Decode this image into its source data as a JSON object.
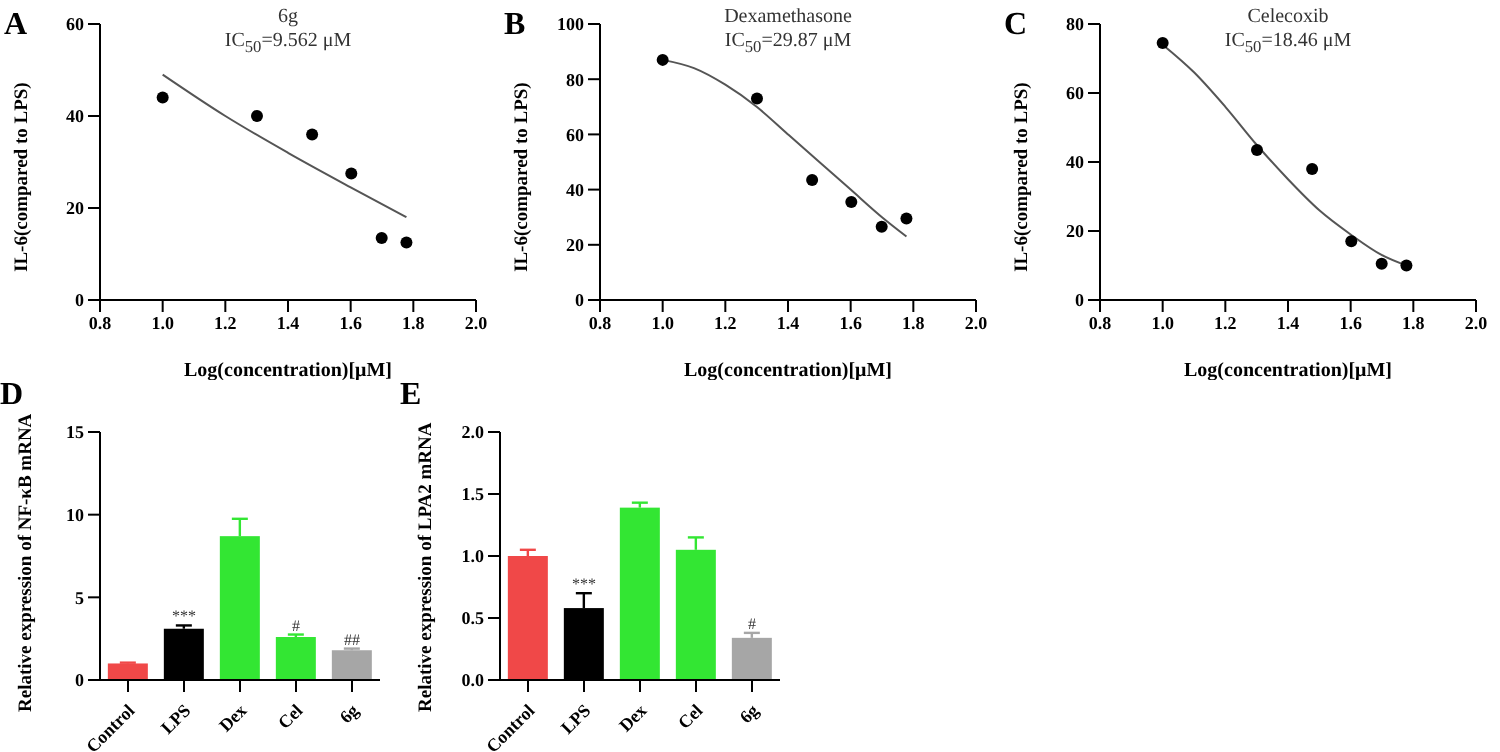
{
  "chart_data": [
    {
      "type": "scatter",
      "title": "6g",
      "subtitle": "IC$_{50}$=9.562 μM",
      "xlabel": "Log(concentration)[μM]",
      "ylabel": "IL-6(compared to LPS)",
      "annotations": [
        "A"
      ],
      "grid": false,
      "legend": false,
      "xlim": [
        0.8,
        2.0
      ],
      "xticks": [
        {
          "value": 0.8,
          "label": "0.8"
        },
        {
          "value": 1,
          "label": "1.0"
        },
        {
          "value": 1.2,
          "label": "1.2"
        },
        {
          "value": 1.4,
          "label": "1.4"
        },
        {
          "value": 1.6,
          "label": "1.6"
        },
        {
          "value": 1.8,
          "label": "1.8"
        },
        {
          "value": 2,
          "label": "2.0"
        }
      ],
      "ylim": [
        0,
        60
      ],
      "yticks": [
        0,
        20,
        40,
        60
      ],
      "series": [
        {
          "type": "scatter",
          "marker": "circle",
          "color": "#000000",
          "x": [
            1.0,
            1.301,
            1.477,
            1.602,
            1.699,
            1.778
          ],
          "values": [
            44,
            40,
            36,
            27.5,
            13.5,
            12.5
          ]
        },
        {
          "type": "line",
          "marker": "none",
          "color": "#555555",
          "x": [
            1.0,
            1.2,
            1.4,
            1.6,
            1.778
          ],
          "values": [
            49,
            40,
            32,
            24.5,
            18
          ]
        }
      ]
    },
    {
      "type": "scatter",
      "title": "Dexamethasone",
      "subtitle": "IC$_{50}$=29.87 μM",
      "xlabel": "Log(concentration)[μM]",
      "ylabel": "IL-6(compared to LPS)",
      "annotations": [
        "B"
      ],
      "grid": false,
      "legend": false,
      "xlim": [
        0.8,
        2.0
      ],
      "xticks": [
        {
          "value": 0.8,
          "label": "0.8"
        },
        {
          "value": 1,
          "label": "1.0"
        },
        {
          "value": 1.2,
          "label": "1.2"
        },
        {
          "value": 1.4,
          "label": "1.4"
        },
        {
          "value": 1.6,
          "label": "1.6"
        },
        {
          "value": 1.8,
          "label": "1.8"
        },
        {
          "value": 2,
          "label": "2.0"
        }
      ],
      "ylim": [
        0,
        100
      ],
      "yticks": [
        0,
        20,
        40,
        60,
        80,
        100
      ],
      "series": [
        {
          "type": "scatter",
          "marker": "circle",
          "color": "#000000",
          "x": [
            1.0,
            1.301,
            1.477,
            1.602,
            1.699,
            1.778
          ],
          "values": [
            87,
            73,
            43.5,
            35.5,
            26.5,
            29.5
          ]
        },
        {
          "type": "line",
          "marker": "none",
          "color": "#555555",
          "x": [
            1.0,
            1.1,
            1.2,
            1.3,
            1.4,
            1.5,
            1.6,
            1.7,
            1.778
          ],
          "values": [
            87,
            84,
            78,
            70,
            60,
            50,
            40,
            30,
            23
          ]
        }
      ]
    },
    {
      "type": "scatter",
      "title": "Celecoxib",
      "subtitle": "IC$_{50}$=18.46 μM",
      "xlabel": "Log(concentration)[μM]",
      "ylabel": "IL-6(compared to LPS)",
      "annotations": [
        "C"
      ],
      "grid": false,
      "legend": false,
      "xlim": [
        0.8,
        2.0
      ],
      "xticks": [
        {
          "value": 0.8,
          "label": "0.8"
        },
        {
          "value": 1,
          "label": "1.0"
        },
        {
          "value": 1.2,
          "label": "1.2"
        },
        {
          "value": 1.4,
          "label": "1.4"
        },
        {
          "value": 1.6,
          "label": "1.6"
        },
        {
          "value": 1.8,
          "label": "1.8"
        },
        {
          "value": 2,
          "label": "2.0"
        }
      ],
      "ylim": [
        0,
        80
      ],
      "yticks": [
        0,
        20,
        40,
        60,
        80
      ],
      "series": [
        {
          "type": "scatter",
          "marker": "circle",
          "color": "#000000",
          "x": [
            1.0,
            1.301,
            1.477,
            1.602,
            1.699,
            1.778
          ],
          "values": [
            74.5,
            43.5,
            38,
            17,
            10.5,
            10
          ]
        },
        {
          "type": "line",
          "marker": "none",
          "color": "#555555",
          "x": [
            1.0,
            1.1,
            1.2,
            1.3,
            1.4,
            1.5,
            1.6,
            1.7,
            1.778
          ],
          "values": [
            74,
            66,
            56,
            45,
            35,
            26,
            19,
            13,
            10
          ]
        }
      ]
    },
    {
      "type": "bar",
      "ylabel": "Relative expression of NF-κB mRNA",
      "grid": false,
      "legend": false,
      "categories": [
        "Control",
        "LPS",
        "Dex",
        "Cel",
        "6g"
      ],
      "values": [
        1.0,
        3.1,
        8.7,
        2.6,
        1.8
      ],
      "errors": [
        0.05,
        0.2,
        1.05,
        0.15,
        0.1
      ],
      "colors": [
        "#f04848",
        "#000000",
        "#33e633",
        "#33e633",
        "#a6a6a6"
      ],
      "ylim": [
        0,
        15
      ],
      "yticks": [
        0,
        5,
        10,
        15
      ],
      "annotations": [
        "D",
        {
          "text": "***",
          "x": "LPS",
          "y": 3.3
        },
        {
          "text": "#",
          "x": "Cel",
          "y": 2.75
        },
        {
          "text": "##",
          "x": "6g",
          "y": 1.9
        }
      ]
    },
    {
      "type": "bar",
      "ylabel": "Relative expression of LPA2 mRNA",
      "grid": false,
      "legend": false,
      "categories": [
        "Control",
        "LPS",
        "Dex",
        "Cel",
        "6g"
      ],
      "values": [
        1.0,
        0.58,
        1.39,
        1.05,
        0.34
      ],
      "errors": [
        0.05,
        0.12,
        0.04,
        0.1,
        0.04
      ],
      "colors": [
        "#f04848",
        "#000000",
        "#33e633",
        "#33e633",
        "#a6a6a6"
      ],
      "ylim": [
        0,
        2
      ],
      "yticks": [
        {
          "value": 0,
          "label": "0.0"
        },
        {
          "value": 0.5,
          "label": "0.5"
        },
        {
          "value": 1,
          "label": "1.0"
        },
        {
          "value": 1.5,
          "label": "1.5"
        },
        {
          "value": 2,
          "label": "2.0"
        }
      ],
      "annotations": [
        "E",
        {
          "text": "***",
          "x": "LPS",
          "y": 0.7
        },
        {
          "text": "#",
          "x": "6g",
          "y": 0.38
        }
      ]
    }
  ]
}
